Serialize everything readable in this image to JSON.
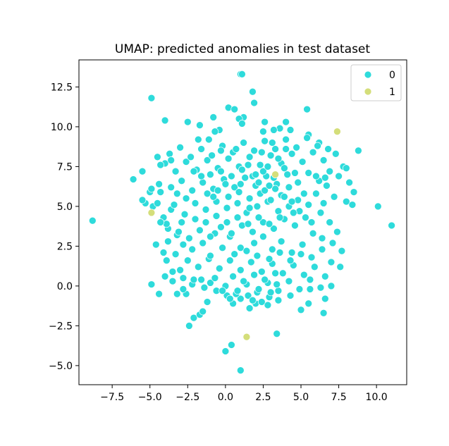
{
  "chart_data": {
    "type": "scatter",
    "title": "UMAP: predicted anomalies in test dataset",
    "xlabel": "",
    "ylabel": "",
    "xlim": [
      -9.7,
      12.0
    ],
    "ylim": [
      -6.2,
      14.2
    ],
    "xticks": [
      -7.5,
      -5.0,
      -2.5,
      0.0,
      2.5,
      5.0,
      7.5,
      10.0
    ],
    "xtick_labels": [
      "−7.5",
      "−5.0",
      "−2.5",
      "0.0",
      "2.5",
      "5.0",
      "7.5",
      "10.0"
    ],
    "yticks": [
      -5.0,
      -2.5,
      0.0,
      2.5,
      5.0,
      7.5,
      10.0,
      12.5
    ],
    "ytick_labels": [
      "−5.0",
      "−2.5",
      "0.0",
      "2.5",
      "5.0",
      "7.5",
      "10.0",
      "12.5"
    ],
    "grid": false,
    "legend": {
      "title": "",
      "placement": "top-right",
      "entries": [
        "0",
        "1"
      ]
    },
    "colors": {
      "0": "#2edbdb",
      "1": "#d4de7a"
    },
    "series": [
      {
        "name": "0",
        "points": [
          [
            -8.8,
            4.1
          ],
          [
            11.0,
            3.8
          ],
          [
            10.1,
            5.0
          ],
          [
            8.8,
            8.5
          ],
          [
            1.0,
            13.3
          ],
          [
            1.1,
            13.3
          ],
          [
            -4.9,
            11.8
          ],
          [
            1.8,
            12.2
          ],
          [
            1.9,
            11.5
          ],
          [
            5.4,
            11.1
          ],
          [
            0.2,
            11.2
          ],
          [
            0.6,
            11.1
          ],
          [
            1.2,
            10.6
          ],
          [
            -4.0,
            10.4
          ],
          [
            -2.5,
            10.3
          ],
          [
            -0.8,
            10.6
          ],
          [
            -0.4,
            9.8
          ],
          [
            2.5,
            9.7
          ],
          [
            -1.7,
            10.1
          ],
          [
            4.0,
            10.3
          ],
          [
            3.6,
            9.9
          ],
          [
            0.9,
            10.5
          ],
          [
            -0.7,
            9.7
          ],
          [
            1.1,
            10.2
          ],
          [
            3.2,
            9.8
          ],
          [
            4.3,
            9.8
          ],
          [
            5.5,
            9.5
          ],
          [
            6.2,
            9.0
          ],
          [
            7.8,
            7.5
          ],
          [
            8.0,
            7.4
          ],
          [
            8.0,
            5.3
          ],
          [
            8.4,
            5.1
          ],
          [
            8.5,
            5.9
          ],
          [
            7.5,
            6.9
          ],
          [
            8.2,
            6.5
          ],
          [
            -6.1,
            6.7
          ],
          [
            -5.5,
            7.2
          ],
          [
            -5.3,
            5.2
          ],
          [
            -5.5,
            5.4
          ],
          [
            -5.0,
            5.9
          ],
          [
            -4.8,
            5.0
          ],
          [
            -4.5,
            5.2
          ],
          [
            -4.3,
            5.9
          ],
          [
            -3.8,
            3.6
          ],
          [
            -3.6,
            4.8
          ],
          [
            -4.6,
            2.6
          ],
          [
            -4.1,
            2.1
          ],
          [
            -3.3,
            2.0
          ],
          [
            -3.0,
            1.0
          ],
          [
            -4.0,
            0.6
          ],
          [
            -4.4,
            -0.5
          ],
          [
            -4.9,
            0.1
          ],
          [
            -3.2,
            -0.5
          ],
          [
            -2.6,
            -0.5
          ],
          [
            -2.4,
            -2.5
          ],
          [
            -2.1,
            -2.0
          ],
          [
            -1.7,
            -1.8
          ],
          [
            -1.2,
            -1.0
          ],
          [
            -1.5,
            -1.6
          ],
          [
            0.0,
            -4.1
          ],
          [
            0.4,
            -3.7
          ],
          [
            1.0,
            -5.3
          ],
          [
            3.4,
            -3.0
          ],
          [
            5.0,
            -1.5
          ],
          [
            5.5,
            -1.1
          ],
          [
            6.5,
            -1.7
          ],
          [
            6.6,
            -0.8
          ],
          [
            7.0,
            0.0
          ],
          [
            7.6,
            1.2
          ],
          [
            7.7,
            2.2
          ],
          [
            5.6,
            -0.2
          ],
          [
            4.3,
            -0.6
          ],
          [
            3.5,
            -0.9
          ],
          [
            2.8,
            -1.2
          ],
          [
            2.0,
            -1.1
          ],
          [
            1.6,
            -1.4
          ],
          [
            1.0,
            -0.8
          ],
          [
            0.5,
            -1.1
          ],
          [
            0.1,
            -0.6
          ],
          [
            -0.6,
            -0.3
          ],
          [
            -1.0,
            0.2
          ],
          [
            -1.6,
            0.4
          ],
          [
            -2.2,
            0.1
          ],
          [
            -2.8,
            0.5
          ],
          [
            -3.5,
            0.9
          ],
          [
            -3.9,
            1.6
          ],
          [
            -3.2,
            3.2
          ],
          [
            -2.8,
            2.6
          ],
          [
            -2.2,
            2.3
          ],
          [
            -1.5,
            2.7
          ],
          [
            -0.7,
            3.3
          ],
          [
            0.3,
            3.1
          ],
          [
            1.0,
            2.4
          ],
          [
            1.9,
            2.7
          ],
          [
            2.5,
            3.1
          ],
          [
            3.1,
            2.3
          ],
          [
            3.7,
            2.8
          ],
          [
            4.4,
            2.1
          ],
          [
            5.1,
            2.6
          ],
          [
            5.8,
            3.3
          ],
          [
            6.4,
            3.0
          ],
          [
            7.1,
            2.7
          ],
          [
            7.4,
            3.4
          ],
          [
            6.9,
            4.0
          ],
          [
            6.3,
            4.6
          ],
          [
            5.5,
            5.1
          ],
          [
            4.8,
            5.4
          ],
          [
            4.2,
            5.0
          ],
          [
            3.5,
            4.7
          ],
          [
            2.8,
            5.3
          ],
          [
            2.1,
            5.0
          ],
          [
            1.4,
            4.6
          ],
          [
            0.8,
            5.2
          ],
          [
            0.1,
            4.9
          ],
          [
            -0.6,
            5.3
          ],
          [
            -1.3,
            4.8
          ],
          [
            -2.0,
            5.2
          ],
          [
            -2.7,
            4.5
          ],
          [
            -3.4,
            5.1
          ],
          [
            -4.1,
            4.3
          ],
          [
            -3.6,
            6.2
          ],
          [
            -2.9,
            6.6
          ],
          [
            -2.2,
            6.0
          ],
          [
            -1.5,
            6.5
          ],
          [
            -0.8,
            6.1
          ],
          [
            -0.1,
            6.7
          ],
          [
            0.6,
            6.2
          ],
          [
            1.3,
            6.8
          ],
          [
            2.0,
            6.3
          ],
          [
            2.7,
            6.9
          ],
          [
            3.4,
            6.4
          ],
          [
            4.1,
            7.0
          ],
          [
            4.8,
            6.5
          ],
          [
            5.5,
            7.1
          ],
          [
            6.2,
            6.6
          ],
          [
            6.9,
            7.2
          ],
          [
            6.5,
            7.9
          ],
          [
            5.8,
            8.4
          ],
          [
            5.1,
            7.8
          ],
          [
            4.4,
            8.3
          ],
          [
            3.7,
            7.7
          ],
          [
            3.0,
            8.2
          ],
          [
            2.3,
            7.6
          ],
          [
            1.6,
            8.1
          ],
          [
            0.9,
            7.5
          ],
          [
            0.2,
            8.0
          ],
          [
            -0.5,
            7.4
          ],
          [
            -1.2,
            7.9
          ],
          [
            -1.9,
            7.3
          ],
          [
            -2.6,
            7.8
          ],
          [
            -3.3,
            7.2
          ],
          [
            -4.0,
            7.7
          ],
          [
            -3.7,
            8.3
          ],
          [
            -3.0,
            8.7
          ],
          [
            -2.3,
            8.1
          ],
          [
            -1.6,
            8.6
          ],
          [
            -0.9,
            8.2
          ],
          [
            -0.2,
            8.8
          ],
          [
            0.5,
            8.4
          ],
          [
            1.2,
            9.0
          ],
          [
            1.9,
            8.5
          ],
          [
            2.6,
            9.1
          ],
          [
            3.3,
            8.6
          ],
          [
            4.0,
            9.2
          ],
          [
            4.7,
            8.7
          ],
          [
            5.4,
            9.3
          ],
          [
            6.1,
            8.8
          ],
          [
            6.8,
            8.6
          ],
          [
            7.3,
            8.3
          ],
          [
            6.0,
            5.8
          ],
          [
            5.3,
            4.3
          ],
          [
            4.6,
            3.8
          ],
          [
            3.9,
            4.2
          ],
          [
            3.2,
            3.6
          ],
          [
            2.5,
            4.0
          ],
          [
            1.8,
            3.4
          ],
          [
            1.1,
            3.8
          ],
          [
            0.4,
            3.3
          ],
          [
            -0.3,
            3.7
          ],
          [
            -1.0,
            3.1
          ],
          [
            -1.7,
            3.5
          ],
          [
            -2.4,
            3.0
          ],
          [
            -3.1,
            3.4
          ],
          [
            -3.8,
            2.8
          ],
          [
            -2.5,
            1.6
          ],
          [
            -1.8,
            1.2
          ],
          [
            -1.1,
            1.7
          ],
          [
            -0.4,
            1.1
          ],
          [
            0.3,
            1.6
          ],
          [
            1.0,
            1.0
          ],
          [
            1.7,
            1.5
          ],
          [
            2.4,
            0.9
          ],
          [
            3.1,
            1.4
          ],
          [
            3.8,
            0.8
          ],
          [
            4.5,
            1.3
          ],
          [
            5.2,
            0.7
          ],
          [
            5.9,
            1.2
          ],
          [
            6.6,
            0.6
          ],
          [
            7.0,
            1.5
          ],
          [
            6.3,
            -0.1
          ],
          [
            5.6,
            0.4
          ],
          [
            4.9,
            -0.2
          ],
          [
            4.2,
            0.3
          ],
          [
            3.5,
            -0.3
          ],
          [
            2.8,
            0.2
          ],
          [
            2.1,
            -0.4
          ],
          [
            1.4,
            0.1
          ],
          [
            0.7,
            -0.5
          ],
          [
            0.0,
            0.0
          ],
          [
            -0.7,
            0.5
          ],
          [
            -1.4,
            -0.1
          ],
          [
            -2.1,
            0.4
          ],
          [
            -2.8,
            -0.2
          ],
          [
            -3.5,
            0.3
          ],
          [
            -1.2,
            5.8
          ],
          [
            -0.5,
            6.0
          ],
          [
            0.2,
            5.6
          ],
          [
            0.9,
            5.9
          ],
          [
            1.6,
            5.5
          ],
          [
            2.3,
            5.8
          ],
          [
            3.0,
            5.4
          ],
          [
            3.7,
            5.7
          ],
          [
            4.4,
            5.3
          ],
          [
            -1.0,
            7.0
          ],
          [
            -0.3,
            7.2
          ],
          [
            0.4,
            6.9
          ],
          [
            1.1,
            7.3
          ],
          [
            1.8,
            6.9
          ],
          [
            2.5,
            7.2
          ],
          [
            3.2,
            6.8
          ],
          [
            3.9,
            7.4
          ],
          [
            4.6,
            7.1
          ],
          [
            -2.0,
            4.2
          ],
          [
            -1.3,
            4.0
          ],
          [
            -0.6,
            4.4
          ],
          [
            0.1,
            4.0
          ],
          [
            0.8,
            4.3
          ],
          [
            1.5,
            3.9
          ],
          [
            2.2,
            4.3
          ],
          [
            2.9,
            3.9
          ],
          [
            3.6,
            4.3
          ],
          [
            0.5,
            0.6
          ],
          [
            1.2,
            0.3
          ],
          [
            1.9,
            0.7
          ],
          [
            2.6,
            0.4
          ],
          [
            3.3,
            0.8
          ],
          [
            0.8,
            -0.3
          ],
          [
            1.5,
            -0.6
          ],
          [
            2.2,
            -0.2
          ],
          [
            2.9,
            -0.7
          ],
          [
            3.4,
            0.1
          ],
          [
            1.8,
            -0.9
          ],
          [
            2.4,
            -1.0
          ],
          [
            3.0,
            -0.4
          ],
          [
            0.3,
            -0.8
          ],
          [
            -0.2,
            -0.3
          ],
          [
            2.8,
            7.5
          ],
          [
            3.5,
            8.0
          ],
          [
            2.4,
            8.4
          ],
          [
            3.1,
            9.0
          ],
          [
            4.2,
            6.2
          ],
          [
            2.0,
            7.0
          ],
          [
            1.5,
            7.6
          ],
          [
            0.7,
            8.6
          ],
          [
            -0.3,
            8.5
          ],
          [
            -1.1,
            9.2
          ],
          [
            2.6,
            6.0
          ],
          [
            3.3,
            6.1
          ],
          [
            4.9,
            4.7
          ],
          [
            5.7,
            4.0
          ],
          [
            6.5,
            5.2
          ],
          [
            7.2,
            5.6
          ],
          [
            6.7,
            6.3
          ],
          [
            -4.4,
            6.4
          ],
          [
            -4.9,
            6.1
          ],
          [
            -3.2,
            5.8
          ],
          [
            -2.6,
            5.5
          ],
          [
            -4.3,
            7.6
          ],
          [
            -3.6,
            7.9
          ],
          [
            -4.5,
            8.1
          ],
          [
            -1.8,
            9.2
          ],
          [
            2.6,
            10.3
          ],
          [
            4.0,
            8.6
          ],
          [
            -1.0,
            1.9
          ],
          [
            -0.2,
            2.4
          ],
          [
            0.6,
            2.0
          ],
          [
            1.4,
            2.2
          ],
          [
            2.1,
            1.9
          ],
          [
            2.9,
            1.7
          ],
          [
            3.6,
            2.1
          ],
          [
            4.3,
            1.6
          ],
          [
            5.0,
            2.0
          ],
          [
            5.7,
            1.8
          ],
          [
            6.4,
            2.3
          ],
          [
            -2.9,
            4.0
          ],
          [
            -3.9,
            3.9
          ],
          [
            -4.3,
            4.0
          ],
          [
            -1.6,
            6.9
          ],
          [
            -2.1,
            7.2
          ],
          [
            4.5,
            4.6
          ],
          [
            5.2,
            5.8
          ],
          [
            6.0,
            6.9
          ],
          [
            6.6,
            6.8
          ],
          [
            3.9,
            5.6
          ],
          [
            1.0,
            6.4
          ],
          [
            0.0,
            6.4
          ],
          [
            -0.8,
            5.6
          ],
          [
            2.2,
            6.5
          ],
          [
            2.9,
            6.3
          ],
          [
            1.6,
            4.9
          ]
        ]
      },
      {
        "name": "1",
        "points": [
          [
            7.4,
            9.7
          ],
          [
            -4.9,
            4.6
          ],
          [
            3.3,
            7.0
          ],
          [
            1.4,
            -3.2
          ]
        ]
      }
    ]
  }
}
